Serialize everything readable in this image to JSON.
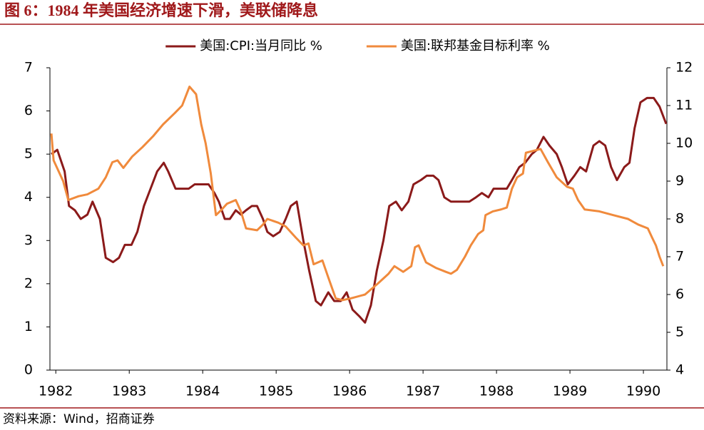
{
  "chart_data": {
    "type": "line",
    "title": "图 6：1984 年美国经济增速下滑，美联储降息",
    "source": "资料来源：Wind，招商证券",
    "legend": "top",
    "grid": false,
    "xlim": [
      1981.92,
      1990.32
    ],
    "xticks": [
      1982,
      1983,
      1984,
      1985,
      1986,
      1987,
      1988,
      1989,
      1990
    ],
    "ylim": [
      0,
      7
    ],
    "yticks": [
      0,
      1,
      2,
      3,
      4,
      5,
      6,
      7
    ],
    "y2lim": [
      4,
      12
    ],
    "y2ticks": [
      4,
      5,
      6,
      7,
      8,
      9,
      10,
      11,
      12
    ],
    "series": [
      {
        "name": "美国:CPI:当月同比 %",
        "color": "#8b1a1a",
        "axis": "y",
        "x": [
          1981.94,
          1982.02,
          1982.12,
          1982.18,
          1982.26,
          1982.34,
          1982.43,
          1982.5,
          1982.6,
          1982.68,
          1982.78,
          1982.86,
          1982.94,
          1983.03,
          1983.11,
          1983.2,
          1983.29,
          1983.38,
          1983.47,
          1983.53,
          1983.63,
          1983.72,
          1983.81,
          1983.89,
          1983.99,
          1984.08,
          1984.16,
          1984.22,
          1984.3,
          1984.37,
          1984.45,
          1984.52,
          1984.59,
          1984.67,
          1984.74,
          1984.82,
          1984.88,
          1984.96,
          1985.05,
          1985.13,
          1985.2,
          1985.28,
          1985.37,
          1985.45,
          1985.54,
          1985.61,
          1985.71,
          1985.79,
          1985.88,
          1985.96,
          1986.04,
          1986.13,
          1986.21,
          1986.29,
          1986.37,
          1986.46,
          1986.54,
          1986.63,
          1986.71,
          1986.8,
          1986.87,
          1986.97,
          1987.05,
          1987.14,
          1987.21,
          1987.29,
          1987.38,
          1987.46,
          1987.55,
          1987.63,
          1987.72,
          1987.8,
          1987.89,
          1987.96,
          1988.04,
          1988.14,
          1988.21,
          1988.31,
          1988.39,
          1988.48,
          1988.55,
          1988.64,
          1988.72,
          1988.82,
          1988.89,
          1988.97,
          1989.06,
          1989.14,
          1989.22,
          1989.32,
          1989.4,
          1989.48,
          1989.56,
          1989.64,
          1989.74,
          1989.81,
          1989.88,
          1989.96,
          1990.05,
          1990.14,
          1990.22,
          1990.31
        ],
        "values": [
          5.0,
          5.1,
          4.6,
          3.8,
          3.7,
          3.5,
          3.6,
          3.9,
          3.5,
          2.6,
          2.5,
          2.6,
          2.9,
          2.9,
          3.2,
          3.8,
          4.2,
          4.6,
          4.8,
          4.6,
          4.2,
          4.2,
          4.2,
          4.3,
          4.3,
          4.3,
          4.1,
          3.9,
          3.5,
          3.5,
          3.7,
          3.6,
          3.7,
          3.8,
          3.8,
          3.5,
          3.2,
          3.1,
          3.2,
          3.5,
          3.8,
          3.9,
          3.0,
          2.3,
          1.6,
          1.5,
          1.8,
          1.6,
          1.6,
          1.8,
          1.4,
          1.25,
          1.1,
          1.5,
          2.3,
          3.0,
          3.8,
          3.9,
          3.7,
          3.9,
          4.3,
          4.4,
          4.5,
          4.5,
          4.4,
          4.0,
          3.9,
          3.9,
          3.9,
          3.9,
          4.0,
          4.1,
          4.0,
          4.2,
          4.2,
          4.2,
          4.4,
          4.7,
          4.8,
          5.0,
          5.1,
          5.4,
          5.2,
          5.0,
          4.7,
          4.3,
          4.5,
          4.7,
          4.6,
          5.2,
          5.3,
          5.2,
          4.7,
          4.4,
          4.7,
          4.8,
          5.6,
          6.2,
          6.3,
          6.3,
          6.1,
          5.7
        ]
      },
      {
        "name": "美国:联邦基金目标利率 %",
        "color": "#f08a3c",
        "axis": "y2",
        "x": [
          1981.94,
          1981.97,
          1982.1,
          1982.17,
          1982.31,
          1982.43,
          1982.58,
          1982.68,
          1982.77,
          1982.84,
          1982.92,
          1983.04,
          1983.18,
          1983.33,
          1983.46,
          1983.62,
          1983.72,
          1983.82,
          1983.91,
          1983.98,
          1984.04,
          1984.11,
          1984.18,
          1984.26,
          1984.33,
          1984.45,
          1984.52,
          1984.59,
          1984.74,
          1984.82,
          1984.88,
          1985.03,
          1985.13,
          1985.27,
          1985.37,
          1985.44,
          1985.51,
          1985.63,
          1985.71,
          1985.81,
          1985.9,
          1986.02,
          1986.21,
          1986.39,
          1986.53,
          1986.61,
          1986.73,
          1986.84,
          1986.89,
          1986.94,
          1987.04,
          1987.18,
          1987.31,
          1987.38,
          1987.46,
          1987.57,
          1987.65,
          1987.75,
          1987.82,
          1987.85,
          1987.95,
          1988.06,
          1988.14,
          1988.21,
          1988.28,
          1988.36,
          1988.4,
          1988.5,
          1988.6,
          1988.7,
          1988.82,
          1988.96,
          1989.04,
          1989.11,
          1989.2,
          1989.4,
          1989.59,
          1989.79,
          1989.93,
          1990.06,
          1990.12,
          1990.17,
          1990.22,
          1990.27
        ],
        "values": [
          10.26,
          9.55,
          9.0,
          8.5,
          8.6,
          8.65,
          8.8,
          9.1,
          9.5,
          9.55,
          9.35,
          9.65,
          9.9,
          10.2,
          10.5,
          10.8,
          11.0,
          11.5,
          11.3,
          10.5,
          10.0,
          9.2,
          8.1,
          8.25,
          8.4,
          8.5,
          8.2,
          7.75,
          7.7,
          7.85,
          8.0,
          7.9,
          7.8,
          7.5,
          7.3,
          7.35,
          6.8,
          6.9,
          6.45,
          5.9,
          5.85,
          5.9,
          6.0,
          6.3,
          6.55,
          6.75,
          6.6,
          6.75,
          7.25,
          7.3,
          6.85,
          6.7,
          6.6,
          6.55,
          6.65,
          7.0,
          7.3,
          7.6,
          7.7,
          8.1,
          8.2,
          8.25,
          8.3,
          8.8,
          9.1,
          9.2,
          9.75,
          9.8,
          9.85,
          9.5,
          9.1,
          8.85,
          8.8,
          8.5,
          8.25,
          8.2,
          8.1,
          8.0,
          7.85,
          7.75,
          7.5,
          7.3,
          7.0,
          6.75
        ]
      }
    ]
  }
}
